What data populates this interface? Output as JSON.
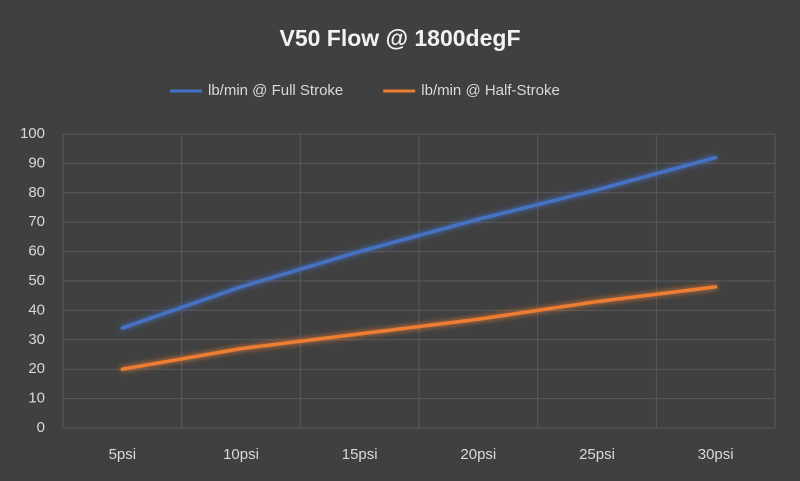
{
  "chart_data": {
    "type": "line",
    "title": "V50 Flow @ 1800degF",
    "categories": [
      "5psi",
      "10psi",
      "15psi",
      "20psi",
      "25psi",
      "30psi"
    ],
    "series": [
      {
        "name": "lb/min @ Full Stroke",
        "color": "#4472c4",
        "values": [
          34,
          48,
          60,
          71,
          81,
          92
        ]
      },
      {
        "name": "lb/min @ Half-Stroke",
        "color": "#ed7d31",
        "values": [
          20,
          27,
          32,
          37,
          43,
          48
        ]
      }
    ],
    "ylim": [
      0,
      100
    ],
    "yticks": [
      0,
      10,
      20,
      30,
      40,
      50,
      60,
      70,
      80,
      90,
      100
    ],
    "grid": true,
    "legend": "top"
  }
}
